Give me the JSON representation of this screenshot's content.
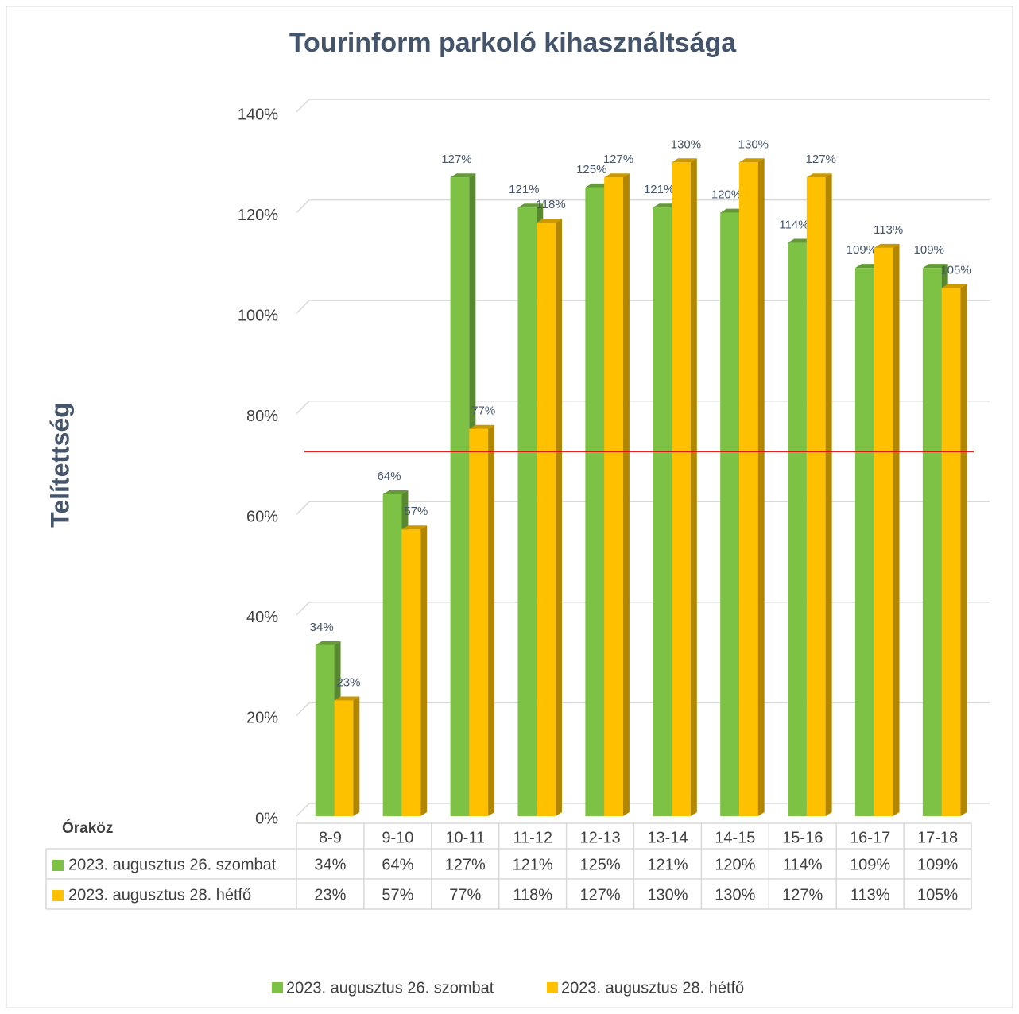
{
  "chart_data": {
    "type": "bar3d",
    "title": "Tourinform parkoló kihasználtsága",
    "y_label": "Telítettség",
    "table_header": "Óraköz",
    "categories": [
      "8-9",
      "9-10",
      "10-11",
      "11-12",
      "12-13",
      "13-14",
      "14-15",
      "15-16",
      "16-17",
      "17-18"
    ],
    "series": [
      {
        "name": "2023. augusztus 26. szombat",
        "color": "#7ec245",
        "values": [
          34,
          64,
          127,
          121,
          125,
          121,
          120,
          114,
          109,
          109
        ],
        "value_labels": [
          "34%",
          "64%",
          "127%",
          "121%",
          "125%",
          "121%",
          "120%",
          "114%",
          "109%",
          "109%"
        ]
      },
      {
        "name": "2023. augusztus 28. hétfő",
        "color": "#ffc000",
        "values": [
          23,
          57,
          77,
          118,
          127,
          130,
          130,
          127,
          113,
          105
        ],
        "value_labels": [
          "23%",
          "57%",
          "77%",
          "118%",
          "127%",
          "130%",
          "130%",
          "127%",
          "113%",
          "105%"
        ]
      }
    ],
    "ylim": [
      0,
      140
    ],
    "yticks": [
      {
        "value": 0,
        "label": "0%"
      },
      {
        "value": 20,
        "label": "20%"
      },
      {
        "value": 40,
        "label": "40%"
      },
      {
        "value": 60,
        "label": "60%"
      },
      {
        "value": 80,
        "label": "80%"
      },
      {
        "value": 100,
        "label": "100%"
      },
      {
        "value": 120,
        "label": "120%"
      },
      {
        "value": 140,
        "label": "140%"
      }
    ],
    "reference_line": {
      "value": 72.5,
      "color": "#e00000"
    },
    "grid": true
  }
}
